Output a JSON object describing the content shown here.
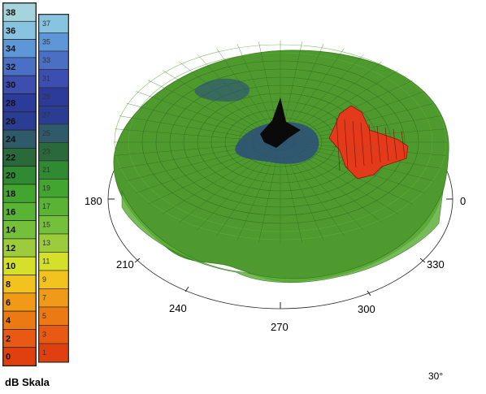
{
  "scale": {
    "caption": "dB Skala",
    "front_labels": [
      "38",
      "36",
      "34",
      "32",
      "30",
      "28",
      "26",
      "24",
      "22",
      "20",
      "18",
      "16",
      "14",
      "12",
      "10",
      "8",
      "6",
      "4",
      "2",
      "0"
    ],
    "back_labels": [
      "37",
      "35",
      "33",
      "31",
      "29",
      "27",
      "25",
      "23",
      "21",
      "19",
      "17",
      "15",
      "13",
      "11",
      "9",
      "7",
      "5",
      "3",
      "1"
    ],
    "colors": [
      "#a7d4dc",
      "#88c3e0",
      "#5d97d8",
      "#4a6fc4",
      "#3c4fb0",
      "#2c3a9a",
      "#2b3d92",
      "#2e5a6a",
      "#2a6a3a",
      "#2f8a32",
      "#42a52f",
      "#58b432",
      "#74c03a",
      "#9ccc3c",
      "#d4e02a",
      "#f2c21e",
      "#f09a18",
      "#ec7a14",
      "#e85a14",
      "#e0400f"
    ]
  },
  "angles": {
    "a0": "0",
    "a180": "180",
    "a210": "210",
    "a240": "240",
    "a270": "270",
    "a300": "300",
    "a330": "330"
  },
  "footer": "30°",
  "plot": {
    "field_color": "#4f9a2e",
    "field_dark": "#3f8426",
    "edge_color": "#5fb03a",
    "depression_color": "#2a4d7a",
    "peak_color": "#e23a1a",
    "center_color": "#0a0a0a"
  }
}
